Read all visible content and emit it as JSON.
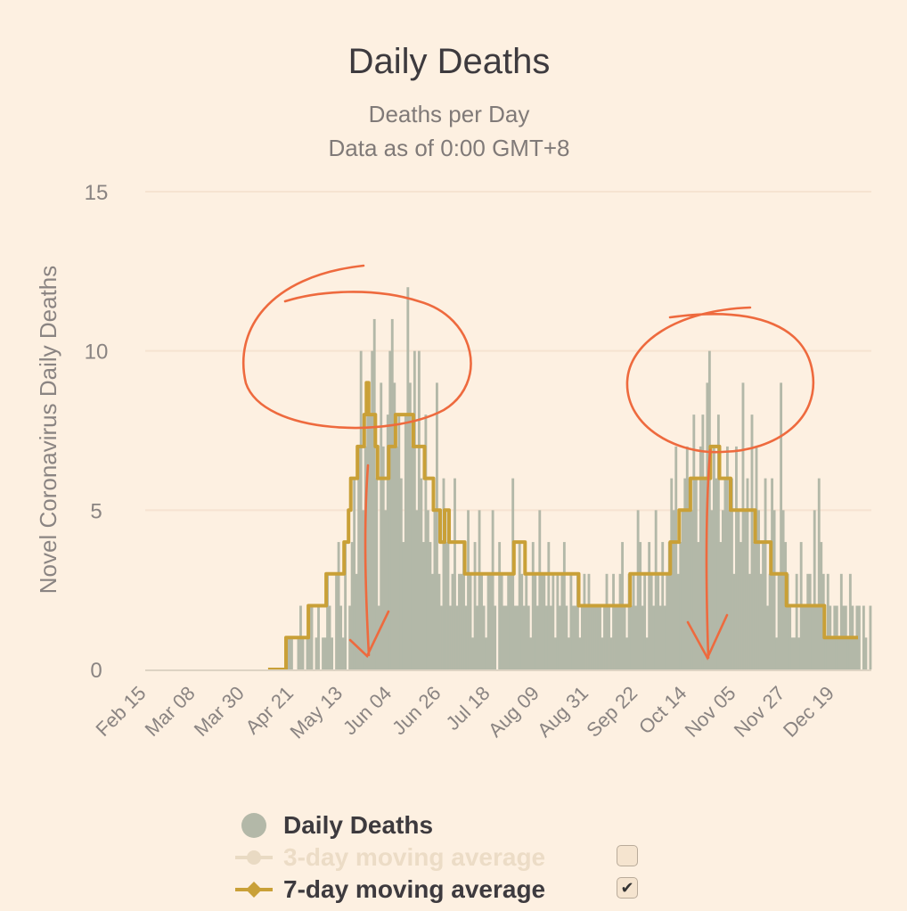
{
  "chart_data": {
    "type": "bar",
    "title": "Daily Deaths",
    "subtitle": "Deaths per Day",
    "subtitle2": "Data as of 0:00 GMT+8",
    "ylabel": "Novel Coronavirus Daily Deaths",
    "ylim": [
      0,
      15
    ],
    "yticks": [
      0,
      5,
      10,
      15
    ],
    "x_start": "Feb 15",
    "x_tick_labels": [
      "Feb 15",
      "Mar 08",
      "Mar 30",
      "Apr 21",
      "May 13",
      "Jun 04",
      "Jun 26",
      "Jul 18",
      "Aug 09",
      "Aug 31",
      "Sep 22",
      "Oct 14",
      "Nov 05",
      "Nov 27",
      "Dec 19"
    ],
    "x_tick_interval_days": 22,
    "series": [
      {
        "name": "Daily Deaths",
        "kind": "bar",
        "color": "#b3b8a8",
        "start_day": 55,
        "values": [
          0,
          0,
          0,
          0,
          0,
          0,
          0,
          0,
          1,
          1,
          1,
          0,
          0,
          1,
          2,
          1,
          0,
          1,
          2,
          2,
          0,
          1,
          2,
          0,
          1,
          1,
          3,
          2,
          1,
          0,
          3,
          4,
          2,
          1,
          4,
          0,
          2,
          4,
          6,
          3,
          7,
          10,
          5,
          7,
          9,
          8,
          10,
          11,
          6,
          2,
          9,
          7,
          5,
          8,
          10,
          11,
          9,
          7,
          8,
          6,
          4,
          8,
          12,
          9,
          7,
          10,
          5,
          10,
          6,
          4,
          8,
          5,
          4,
          3,
          5,
          9,
          3,
          2,
          6,
          4,
          5,
          2,
          3,
          6,
          2,
          3,
          3,
          4,
          2,
          5,
          3,
          1,
          4,
          2,
          5,
          3,
          2,
          1,
          3,
          3,
          5,
          2,
          0,
          4,
          3,
          2,
          2,
          3,
          3,
          6,
          2,
          2,
          4,
          3,
          2,
          3,
          2,
          1,
          4,
          3,
          2,
          5,
          3,
          3,
          2,
          4,
          2,
          3,
          1,
          3,
          2,
          3,
          4,
          2,
          1,
          3,
          2,
          2,
          3,
          1,
          2,
          3,
          2,
          3,
          2,
          2,
          2,
          2,
          2,
          1,
          2,
          3,
          2,
          1,
          3,
          2,
          2,
          3,
          4,
          2,
          1,
          3,
          2,
          3,
          2,
          5,
          4,
          2,
          3,
          1,
          4,
          3,
          2,
          5,
          3,
          2,
          4,
          2,
          3,
          4,
          6,
          5,
          7,
          3,
          4,
          5,
          6,
          7,
          6,
          5,
          8,
          6,
          4,
          7,
          8,
          6,
          9,
          10,
          5,
          7,
          6,
          8,
          4,
          5,
          6,
          7,
          5,
          6,
          3,
          7,
          5,
          4,
          9,
          5,
          6,
          3,
          8,
          4,
          7,
          5,
          3,
          4,
          6,
          2,
          3,
          6,
          5,
          1,
          3,
          9,
          5,
          4,
          3,
          2,
          1,
          1,
          3,
          1,
          4,
          2,
          2,
          3,
          3,
          2,
          5,
          2,
          6,
          4,
          3,
          1,
          3,
          2,
          1,
          2,
          2,
          1,
          3,
          2,
          2,
          1,
          3,
          2,
          1,
          2,
          2,
          0,
          2,
          1,
          0,
          2
        ]
      },
      {
        "name": "3-day moving average",
        "kind": "line",
        "enabled": false,
        "color": "#e9dac3"
      },
      {
        "name": "7-day moving average",
        "kind": "line",
        "enabled": true,
        "color": "#c9a037",
        "start_day": 55,
        "values": [
          0,
          0,
          0,
          0,
          0,
          0,
          0,
          0,
          1,
          1,
          1,
          1,
          1,
          1,
          1,
          1,
          1,
          1,
          2,
          2,
          2,
          2,
          2,
          2,
          2,
          2,
          3,
          3,
          3,
          3,
          3,
          3,
          3,
          3,
          4,
          4,
          5,
          6,
          6,
          6,
          7,
          7,
          7,
          8,
          9,
          8,
          8,
          8,
          7,
          6,
          6,
          6,
          6,
          6,
          7,
          7,
          7,
          8,
          8,
          8,
          8,
          8,
          8,
          8,
          8,
          7,
          7,
          7,
          7,
          7,
          6,
          6,
          6,
          6,
          5,
          5,
          5,
          4,
          4,
          5,
          5,
          4,
          4,
          4,
          4,
          4,
          4,
          4,
          3,
          3,
          3,
          3,
          3,
          3,
          3,
          3,
          3,
          3,
          3,
          3,
          3,
          3,
          3,
          3,
          3,
          3,
          3,
          3,
          3,
          3,
          4,
          4,
          4,
          4,
          4,
          3,
          3,
          3,
          3,
          3,
          3,
          3,
          3,
          3,
          3,
          3,
          3,
          3,
          3,
          3,
          3,
          3,
          3,
          3,
          3,
          3,
          3,
          3,
          3,
          2,
          2,
          2,
          2,
          2,
          2,
          2,
          2,
          2,
          2,
          2,
          2,
          2,
          2,
          2,
          2,
          2,
          2,
          2,
          2,
          2,
          2,
          2,
          3,
          3,
          3,
          3,
          3,
          3,
          3,
          3,
          3,
          3,
          3,
          3,
          3,
          3,
          3,
          3,
          3,
          3,
          4,
          4,
          4,
          4,
          5,
          5,
          5,
          5,
          5,
          6,
          6,
          6,
          6,
          6,
          6,
          6,
          6,
          6,
          7,
          7,
          7,
          7,
          6,
          6,
          6,
          6,
          6,
          5,
          5,
          5,
          5,
          5,
          5,
          5,
          5,
          5,
          5,
          5,
          4,
          4,
          4,
          4,
          4,
          4,
          4,
          3,
          3,
          3,
          3,
          3,
          3,
          3,
          2,
          2,
          2,
          2,
          2,
          2,
          2,
          2,
          2,
          2,
          2,
          2,
          2,
          2,
          2,
          2,
          2,
          1,
          1,
          1,
          1,
          1,
          1,
          1,
          1,
          1,
          1,
          1,
          1,
          1,
          1,
          1
        ]
      }
    ],
    "annotations": [
      {
        "type": "circle",
        "note": "hand-drawn circle around May peak"
      },
      {
        "type": "arrow",
        "note": "downward arrow under May peak"
      },
      {
        "type": "circle",
        "note": "hand-drawn circle around Oct peak"
      },
      {
        "type": "arrow",
        "note": "downward arrow under Oct peak"
      }
    ]
  },
  "legend": [
    {
      "label": "Daily Deaths",
      "symbol": "circle",
      "color": "#b3b8a8",
      "enabled": true,
      "has_checkbox": false
    },
    {
      "label": "3-day moving average",
      "symbol": "line-dot",
      "color": "#e9dac3",
      "enabled": false,
      "has_checkbox": true,
      "checked": false
    },
    {
      "label": "7-day moving average",
      "symbol": "line-diamond",
      "color": "#c9a037",
      "enabled": true,
      "has_checkbox": true,
      "checked": true,
      "check_glyph": "✔"
    }
  ],
  "theme": {
    "background": "#fdf0e1",
    "grid": "#f6e3d1",
    "annotation": "#ee6a3e"
  }
}
